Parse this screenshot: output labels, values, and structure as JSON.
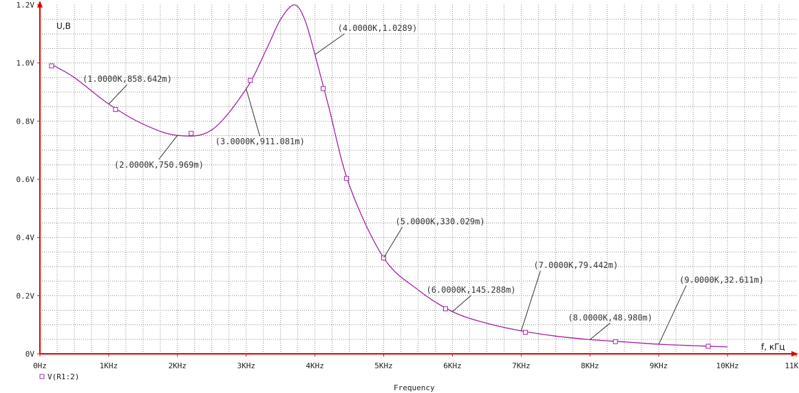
{
  "chart_data": {
    "type": "line",
    "xlabel": "f, кГц",
    "ylabel": "U,В",
    "bottom_caption": "Frequency",
    "xlim": [
      0,
      11000
    ],
    "ylim": [
      0,
      1.2
    ],
    "x_ticks": [
      {
        "value": 0,
        "label": "0Hz"
      },
      {
        "value": 1000,
        "label": "1KHz"
      },
      {
        "value": 2000,
        "label": "2KHz"
      },
      {
        "value": 3000,
        "label": "3KHz"
      },
      {
        "value": 4000,
        "label": "4KHz"
      },
      {
        "value": 5000,
        "label": "5KHz"
      },
      {
        "value": 6000,
        "label": "6KHz"
      },
      {
        "value": 7000,
        "label": "7KHz"
      },
      {
        "value": 8000,
        "label": "8KHz"
      },
      {
        "value": 9000,
        "label": "9KHz"
      },
      {
        "value": 10000,
        "label": "10KHz"
      },
      {
        "value": 11000,
        "label": "11KHz"
      }
    ],
    "y_ticks": [
      {
        "value": 0,
        "label": "0V"
      },
      {
        "value": 0.2,
        "label": "0.2V"
      },
      {
        "value": 0.4,
        "label": "0.4V"
      },
      {
        "value": 0.6,
        "label": "0.6V"
      },
      {
        "value": 0.8,
        "label": "0.8V"
      },
      {
        "value": 1.0,
        "label": "1.0V"
      },
      {
        "value": 1.2,
        "label": "1.2V"
      }
    ],
    "grid": true,
    "legend_position": "bottom-left",
    "series": [
      {
        "name": "V(R1:2)",
        "color": "#a020a0",
        "x": [
          170,
          500,
          1000,
          1500,
          2000,
          2500,
          3000,
          3300,
          3500,
          3700,
          3850,
          4000,
          4200,
          4500,
          5000,
          5500,
          6000,
          6500,
          7000,
          7500,
          8000,
          8500,
          9000,
          9500,
          10000
        ],
        "y": [
          0.995,
          0.95,
          0.859,
          0.79,
          0.751,
          0.77,
          0.911,
          1.05,
          1.15,
          1.2,
          1.15,
          1.029,
          0.85,
          0.58,
          0.33,
          0.22,
          0.145,
          0.105,
          0.079,
          0.061,
          0.049,
          0.041,
          0.033,
          0.028,
          0.024
        ],
        "markers_x": [
          170,
          1100,
          2200,
          3060,
          4120,
          4460,
          5000,
          5900,
          7060,
          8370,
          9720
        ],
        "markers_y": [
          0.99,
          0.84,
          0.758,
          0.94,
          0.912,
          0.603,
          0.33,
          0.155,
          0.074,
          0.042,
          0.026
        ]
      }
    ],
    "annotations": [
      {
        "text": "(1.0000K,858.642m)",
        "x": 1000,
        "y": 0.8586,
        "label_x": 620,
        "label_y": 0.935
      },
      {
        "text": "(2.0000K,750.969m)",
        "x": 2000,
        "y": 0.751,
        "label_x": 1080,
        "label_y": 0.64
      },
      {
        "text": "(3.0000K,911.081m)",
        "x": 3000,
        "y": 0.9111,
        "label_x": 2550,
        "label_y": 0.72
      },
      {
        "text": "(4.0000K,1.0289)",
        "x": 4000,
        "y": 1.0289,
        "label_x": 4330,
        "label_y": 1.11
      },
      {
        "text": "(5.0000K,330.029m)",
        "x": 5000,
        "y": 0.33,
        "label_x": 5170,
        "label_y": 0.445
      },
      {
        "text": "(6.0000K,145.288m)",
        "x": 6000,
        "y": 0.1453,
        "label_x": 5620,
        "label_y": 0.21
      },
      {
        "text": "(7.0000K,79.442m)",
        "x": 7000,
        "y": 0.0794,
        "label_x": 7180,
        "label_y": 0.295
      },
      {
        "text": "(8.0000K,48.980m)",
        "x": 8000,
        "y": 0.049,
        "label_x": 7680,
        "label_y": 0.115
      },
      {
        "text": "(9.0000K,32.611m)",
        "x": 9000,
        "y": 0.0326,
        "label_x": 9300,
        "label_y": 0.245
      }
    ]
  }
}
